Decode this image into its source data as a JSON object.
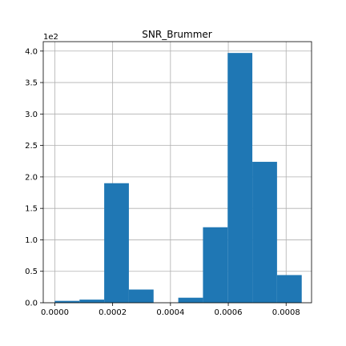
{
  "chart_data": {
    "type": "bar",
    "title": "SNR_Brummer",
    "xlabel": "",
    "ylabel": "",
    "y_offset_label": "1e2",
    "x_ticks": [
      {
        "value": 0.0,
        "label": "0.0000"
      },
      {
        "value": 0.0002,
        "label": "0.0002"
      },
      {
        "value": 0.0004,
        "label": "0.0004"
      },
      {
        "value": 0.0006,
        "label": "0.0006"
      },
      {
        "value": 0.0008,
        "label": "0.0008"
      }
    ],
    "y_ticks": [
      {
        "value": 0,
        "label": "0.0"
      },
      {
        "value": 50,
        "label": "0.5"
      },
      {
        "value": 100,
        "label": "1.0"
      },
      {
        "value": 150,
        "label": "1.5"
      },
      {
        "value": 200,
        "label": "2.0"
      },
      {
        "value": 250,
        "label": "2.5"
      },
      {
        "value": 300,
        "label": "3.0"
      },
      {
        "value": 350,
        "label": "3.5"
      },
      {
        "value": 400,
        "label": "4.0"
      }
    ],
    "xlim": [
      -4e-05,
      0.000888
    ],
    "ylim": [
      0,
      415
    ],
    "grid": true,
    "bar_color": "#1f77b4",
    "bins": [
      {
        "x0": 0.0,
        "x1": 8.54e-05,
        "count": 3
      },
      {
        "x0": 8.54e-05,
        "x1": 0.0001708,
        "count": 5
      },
      {
        "x0": 0.0001708,
        "x1": 0.0002562,
        "count": 190
      },
      {
        "x0": 0.0002562,
        "x1": 0.0003416,
        "count": 21
      },
      {
        "x0": 0.0003416,
        "x1": 0.000427,
        "count": 0
      },
      {
        "x0": 0.000427,
        "x1": 0.0005124,
        "count": 8
      },
      {
        "x0": 0.0005124,
        "x1": 0.0005978,
        "count": 120
      },
      {
        "x0": 0.0005978,
        "x1": 0.0006832,
        "count": 397
      },
      {
        "x0": 0.0006832,
        "x1": 0.0007686,
        "count": 224
      },
      {
        "x0": 0.0007686,
        "x1": 0.000854,
        "count": 44
      }
    ]
  }
}
